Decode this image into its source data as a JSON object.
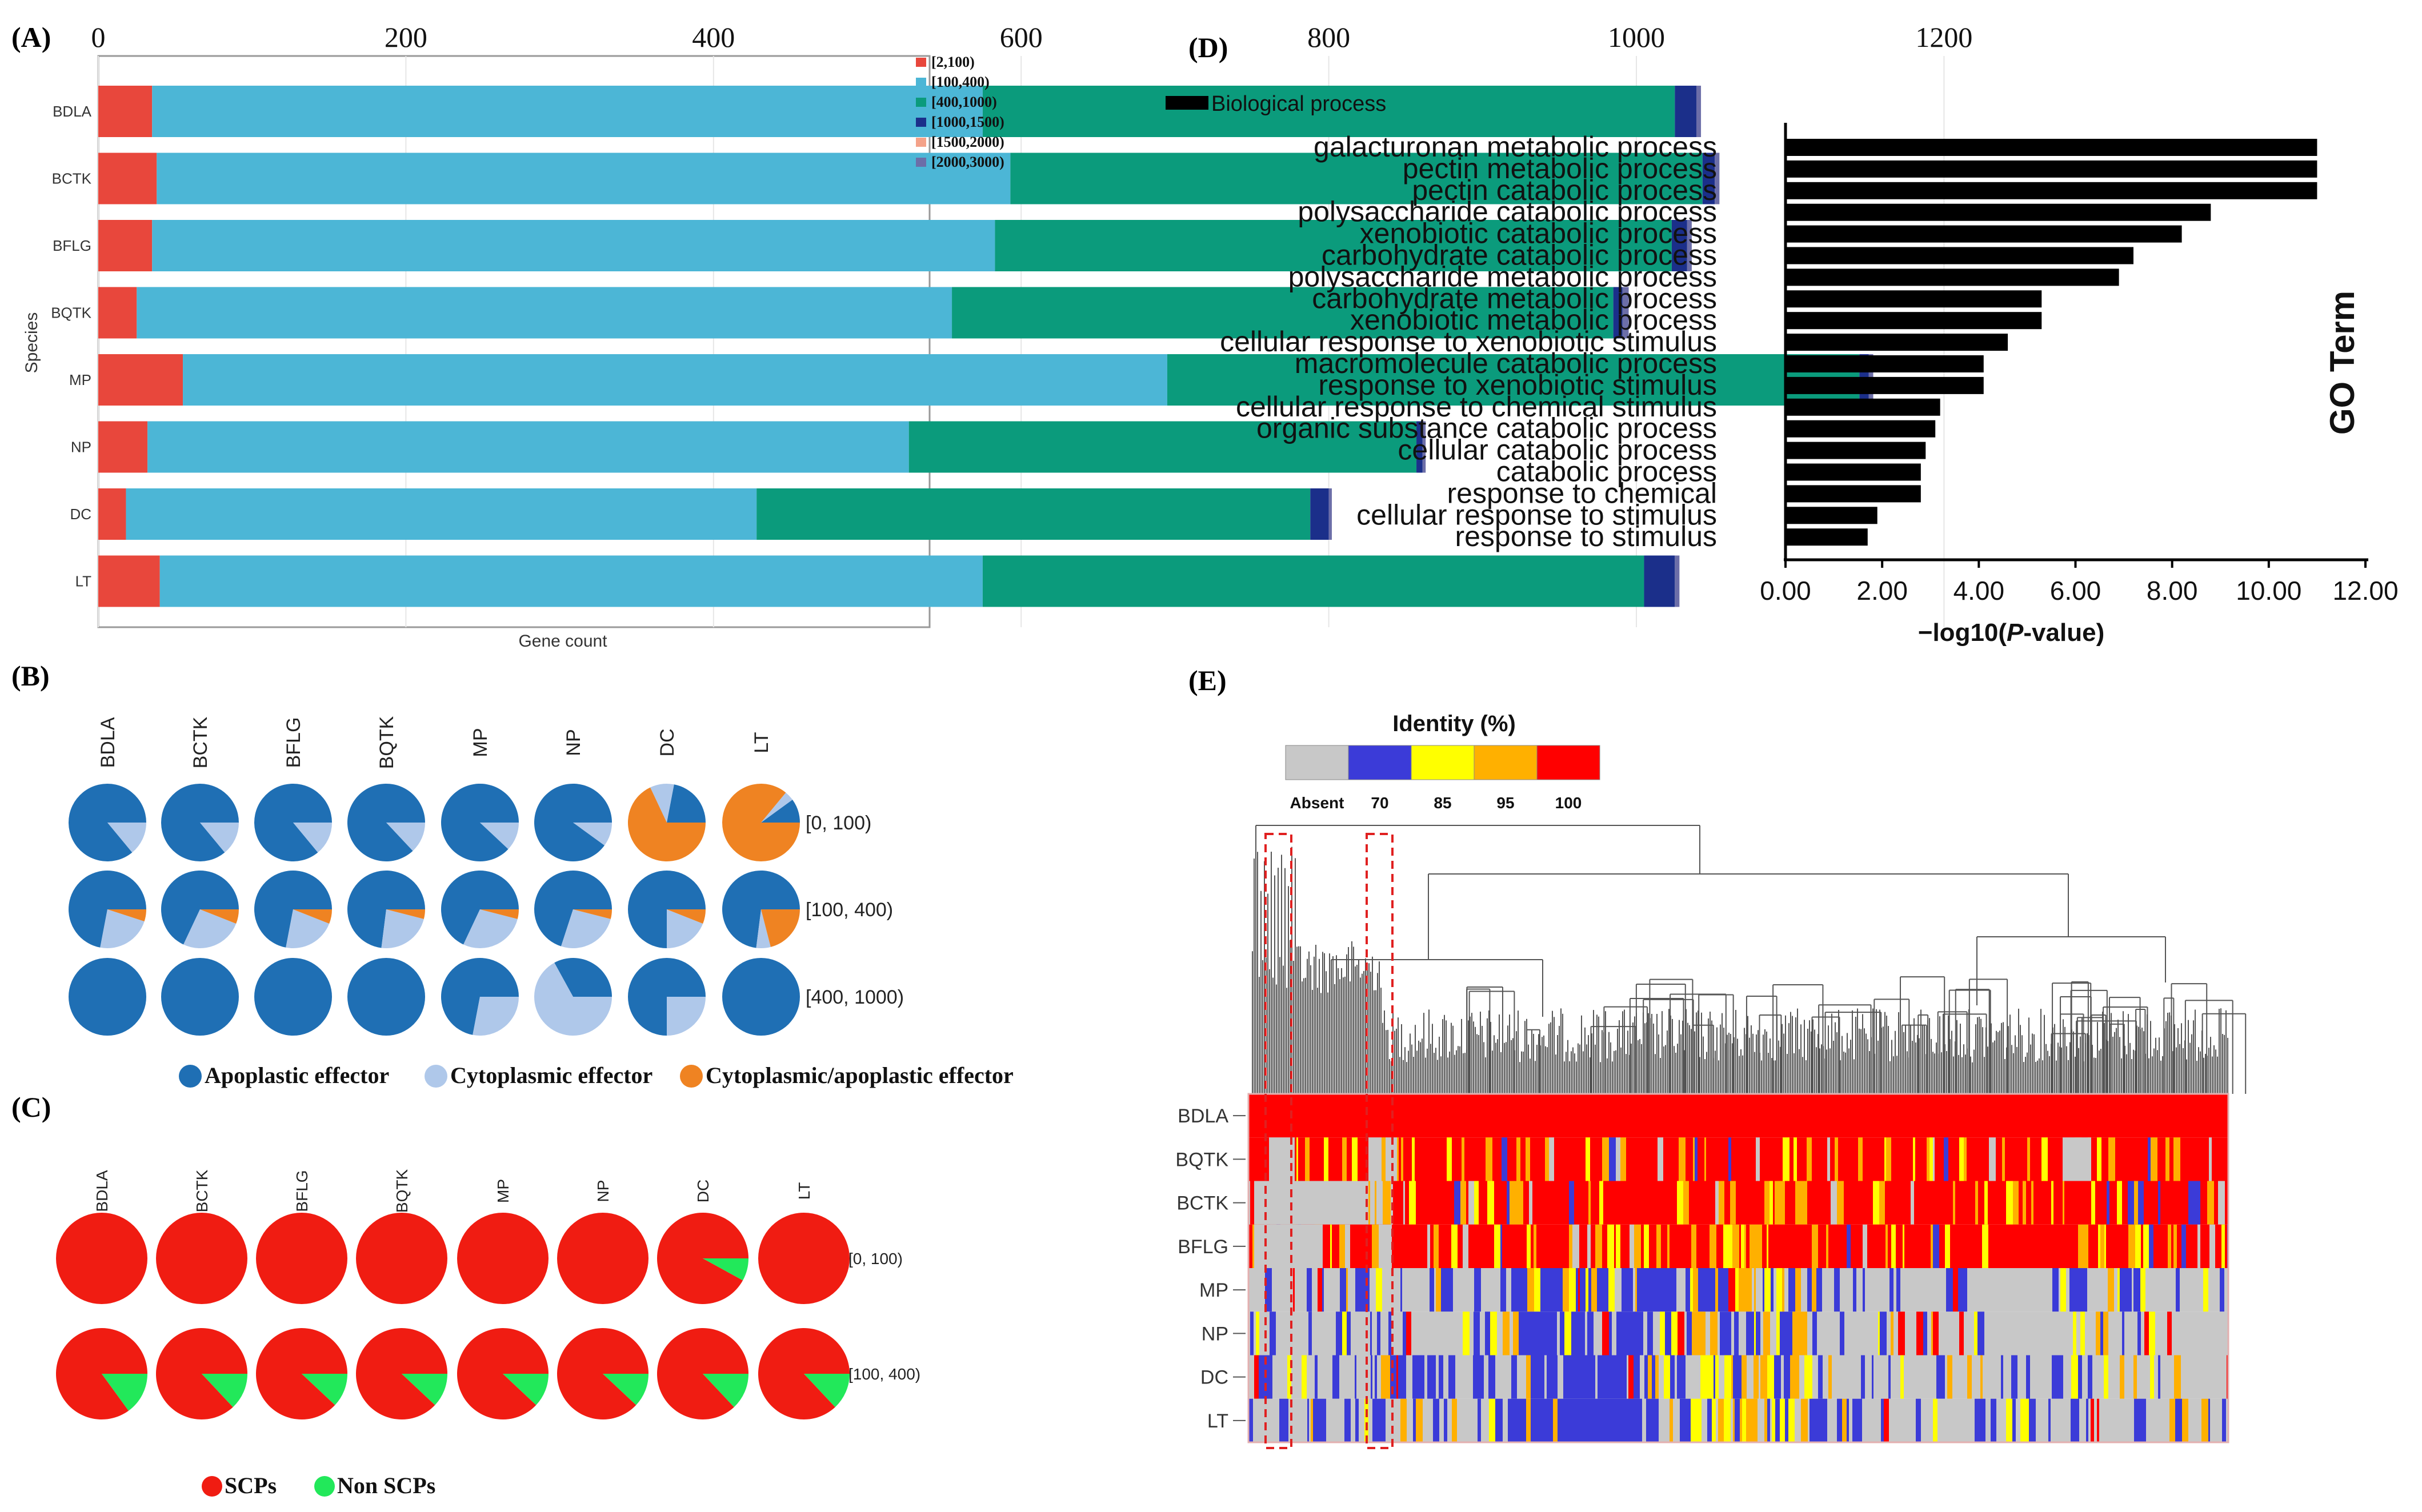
{
  "colors": {
    "pal_A": [
      "#e8473c",
      "#4cb6d6",
      "#0b9b7c",
      "#1b2f8a",
      "#f4a289",
      "#6c6ea8"
    ],
    "pal_B": [
      "#1f6fb4",
      "#afc8ea",
      "#ef8322"
    ],
    "pal_C": [
      "#f01c12",
      "#22e85a"
    ],
    "identity": [
      "#c8c8c8",
      "#3b3bd8",
      "#ffff00",
      "#ffb000",
      "#ff0000"
    ],
    "bars_D": "#000000"
  },
  "chart_data": [
    {
      "panel": "(A)",
      "type": "bar",
      "orientation": "horizontal",
      "stacked": true,
      "categories": [
        "BDLA",
        "BCTK",
        "BFLG",
        "BQTK",
        "MP",
        "NP",
        "DC",
        "LT"
      ],
      "series": [
        {
          "name": "[2,100)",
          "values": [
            35,
            38,
            35,
            25,
            55,
            32,
            18,
            40
          ]
        },
        {
          "name": "[100,400)",
          "values": [
            540,
            555,
            548,
            530,
            640,
            495,
            410,
            535
          ]
        },
        {
          "name": "[400,1000)",
          "values": [
            450,
            450,
            440,
            430,
            450,
            330,
            360,
            430
          ]
        },
        {
          "name": "[1000,1500)",
          "values": [
            14,
            8,
            10,
            6,
            6,
            4,
            12,
            20
          ]
        },
        {
          "name": "[1500,2000)",
          "values": [
            0,
            0,
            0,
            0,
            0,
            0,
            0,
            0
          ]
        },
        {
          "name": "[2000,3000)",
          "values": [
            3,
            3,
            3,
            4,
            3,
            2,
            2,
            3
          ]
        }
      ],
      "xlim": [
        0,
        1200
      ],
      "xticks": [
        "0",
        "200",
        "400",
        "600",
        "800",
        "1000",
        "1200"
      ],
      "xlabel": "Gene count",
      "ylabel": "Species",
      "legend": "top-right"
    },
    {
      "panel": "(B)",
      "type": "pie",
      "columns": [
        "BDLA",
        "BCTK",
        "BFLG",
        "BQTK",
        "MP",
        "NP",
        "DC",
        "LT"
      ],
      "rows": [
        "[0, 100)",
        "[100, 400)",
        "[400, 1000)"
      ],
      "categories": [
        "Apoplastic effector",
        "Cytoplasmic effector",
        "Cytoplasmic/apoplastic effector"
      ],
      "values": [
        [
          [
            0.86,
            0.14,
            0
          ],
          [
            0.86,
            0.14,
            0
          ],
          [
            0.86,
            0.14,
            0
          ],
          [
            0.87,
            0.13,
            0
          ],
          [
            0.88,
            0.12,
            0
          ],
          [
            0.9,
            0.1,
            0
          ],
          [
            0.22,
            0.1,
            0.68
          ],
          [
            0.1,
            0.04,
            0.86
          ]
        ],
        [
          [
            0.72,
            0.23,
            0.05
          ],
          [
            0.68,
            0.26,
            0.06
          ],
          [
            0.72,
            0.22,
            0.06
          ],
          [
            0.73,
            0.23,
            0.04
          ],
          [
            0.68,
            0.28,
            0.04
          ],
          [
            0.7,
            0.26,
            0.04
          ],
          [
            0.75,
            0.19,
            0.06
          ],
          [
            0.73,
            0.06,
            0.21
          ]
        ],
        [
          [
            1,
            0,
            0
          ],
          [
            1,
            0,
            0
          ],
          [
            1,
            0,
            0
          ],
          [
            1,
            0,
            0
          ],
          [
            0.72,
            0.28,
            0
          ],
          [
            0.33,
            0.67,
            0
          ],
          [
            0.75,
            0.25,
            0
          ],
          [
            1,
            0,
            0
          ]
        ]
      ]
    },
    {
      "panel": "(C)",
      "type": "pie",
      "columns": [
        "BDLA",
        "BCTK",
        "BFLG",
        "BQTK",
        "MP",
        "NP",
        "DC",
        "LT"
      ],
      "rows": [
        "[0, 100)",
        "[100, 400)"
      ],
      "categories": [
        "SCPs",
        "Non SCPs"
      ],
      "values": [
        [
          [
            1,
            0
          ],
          [
            1,
            0
          ],
          [
            1,
            0
          ],
          [
            1,
            0
          ],
          [
            1,
            0
          ],
          [
            1,
            0
          ],
          [
            0.92,
            0.08
          ],
          [
            1,
            0
          ]
        ],
        [
          [
            0.85,
            0.15
          ],
          [
            0.87,
            0.13
          ],
          [
            0.88,
            0.12
          ],
          [
            0.88,
            0.12
          ],
          [
            0.88,
            0.12
          ],
          [
            0.88,
            0.12
          ],
          [
            0.87,
            0.13
          ],
          [
            0.87,
            0.13
          ]
        ]
      ]
    },
    {
      "panel": "(D)",
      "type": "bar",
      "orientation": "horizontal",
      "legend_label": "Biological process",
      "categories": [
        "galacturonan metabolic process",
        "pectin metabolic process",
        "pectin catabolic process",
        "polysaccharide catabolic process",
        "xenobiotic catabolic process",
        "carbohydrate catabolic process",
        "polysaccharide metabolic process",
        "carbohydrate metabolic process",
        "xenobiotic metabolic process",
        "cellular response to xenobiotic stimulus",
        "macromolecule catabolic process",
        "response to xenobiotic stimulus",
        "cellular response to chemical stimulus",
        "organic substance catabolic process",
        "cellular catabolic process",
        "catabolic process",
        "response to chemical",
        "cellular response to stimulus",
        "response to stimulus"
      ],
      "values": [
        11.0,
        11.0,
        11.0,
        8.8,
        8.2,
        7.2,
        6.9,
        5.3,
        5.3,
        4.6,
        4.1,
        4.1,
        3.2,
        3.1,
        2.9,
        2.8,
        2.8,
        1.9,
        1.7
      ],
      "xlim": [
        0,
        12
      ],
      "xticks": [
        "0.00",
        "2.00",
        "4.00",
        "6.00",
        "8.00",
        "10.00",
        "12.00"
      ],
      "xlabel_prefix": "−log10(",
      "xlabel_italic": "P",
      "xlabel_suffix": "-value)",
      "ylabel": "GO Term"
    },
    {
      "panel": "(E)",
      "type": "heatmap",
      "title": "Identity (%)",
      "legend_labels": [
        "Absent",
        "70",
        "85",
        "95",
        "100"
      ],
      "rows": [
        "BDLA",
        "BQTK",
        "BCTK",
        "BFLG",
        "MP",
        "NP",
        "DC",
        "LT"
      ]
    }
  ]
}
